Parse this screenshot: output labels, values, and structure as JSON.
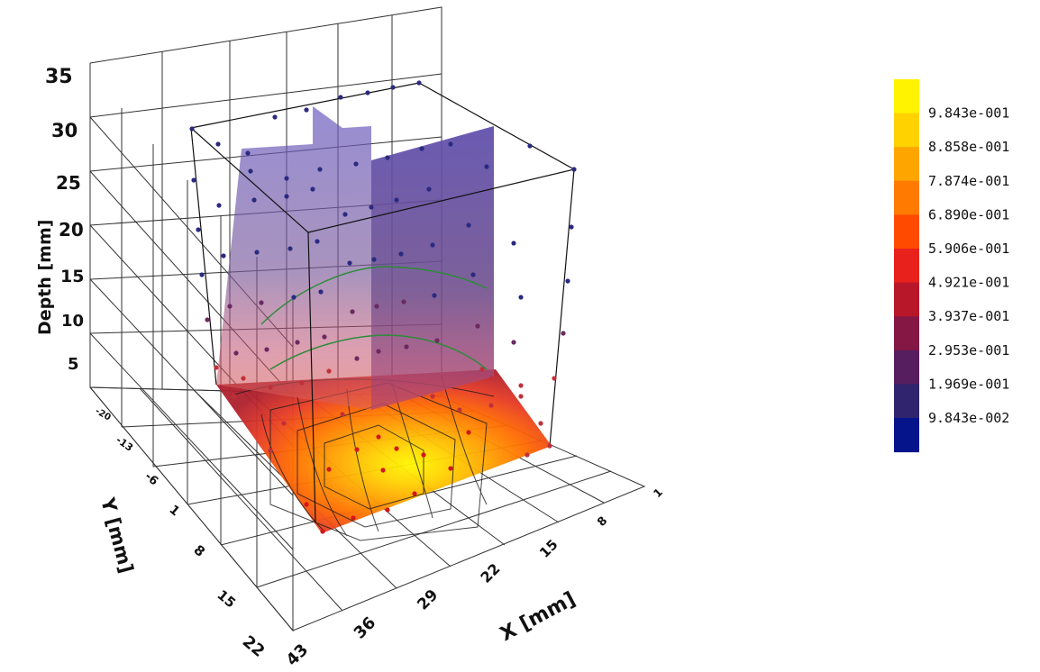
{
  "chart_data": {
    "type": "heatmap",
    "title": "",
    "xlabel": "X [mm]",
    "ylabel": "Y [mm]",
    "zlabel": "Depth [mm]",
    "x_ticks": [
      "1",
      "8",
      "15",
      "22",
      "29",
      "36",
      "43"
    ],
    "y_ticks": [
      "-20",
      "-13",
      "-6",
      "1",
      "8",
      "15",
      "22"
    ],
    "z_ticks": [
      "5",
      "10",
      "15",
      "20",
      "25",
      "30",
      "35"
    ],
    "colorbar_values": [
      "9.843e-001",
      "8.858e-001",
      "7.874e-001",
      "6.890e-001",
      "5.906e-001",
      "4.921e-001",
      "3.937e-001",
      "2.953e-001",
      "1.969e-001",
      "9.843e-002"
    ],
    "colorbar_colors": [
      "#fff300",
      "#ffd200",
      "#ffa500",
      "#ff7a00",
      "#ff4a00",
      "#e8211c",
      "#b8172a",
      "#851745",
      "#561e5e",
      "#30246f",
      "#06148c"
    ],
    "grid": true
  }
}
